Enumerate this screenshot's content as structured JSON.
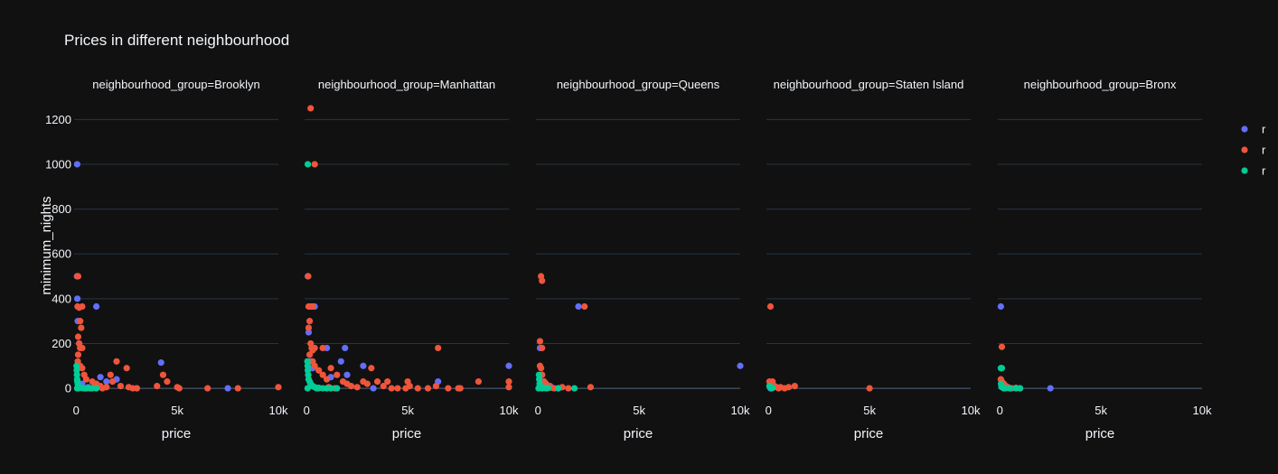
{
  "chart_data": {
    "type": "scatter",
    "title": "Prices in different neighbourhood",
    "xlabel": "price",
    "ylabel": "minimum_nights",
    "xlim": [
      -100,
      10000
    ],
    "ylim": [
      -40,
      1290
    ],
    "x_ticks": [
      {
        "value": 0,
        "label": "0"
      },
      {
        "value": 5000,
        "label": "5k"
      },
      {
        "value": 10000,
        "label": "10k"
      }
    ],
    "y_ticks": [
      {
        "value": 0,
        "label": "0"
      },
      {
        "value": 200,
        "label": "200"
      },
      {
        "value": 400,
        "label": "400"
      },
      {
        "value": 600,
        "label": "600"
      },
      {
        "value": 800,
        "label": "800"
      },
      {
        "value": 1000,
        "label": "1000"
      },
      {
        "value": 1200,
        "label": "1200"
      }
    ],
    "grid": true,
    "legend_position": "top-right",
    "legend": [
      {
        "label": "r",
        "color": "#636efa"
      },
      {
        "label": "r",
        "color": "#ef553b"
      },
      {
        "label": "r",
        "color": "#00cc96"
      }
    ],
    "facets": [
      {
        "title": "neighbourhood_group=Brooklyn",
        "series": [
          {
            "color": "#636efa",
            "points": [
              [
                50,
                1000
              ],
              [
                40,
                500
              ],
              [
                60,
                400
              ],
              [
                80,
                300
              ],
              [
                1000,
                365
              ],
              [
                150,
                200
              ],
              [
                100,
                100
              ],
              [
                1200,
                50
              ],
              [
                2000,
                40
              ],
              [
                3000,
                0
              ],
              [
                4200,
                115
              ],
              [
                7500,
                0
              ],
              [
                1500,
                30
              ],
              [
                300,
                20
              ],
              [
                600,
                5
              ]
            ]
          },
          {
            "color": "#ef553b",
            "points": [
              [
                60,
                500
              ],
              [
                100,
                500
              ],
              [
                70,
                365
              ],
              [
                150,
                360
              ],
              [
                300,
                365
              ],
              [
                200,
                300
              ],
              [
                250,
                270
              ],
              [
                100,
                230
              ],
              [
                150,
                200
              ],
              [
                200,
                180
              ],
              [
                300,
                180
              ],
              [
                100,
                150
              ],
              [
                80,
                120
              ],
              [
                200,
                100
              ],
              [
                300,
                90
              ],
              [
                400,
                60
              ],
              [
                500,
                40
              ],
              [
                800,
                30
              ],
              [
                1000,
                20
              ],
              [
                1200,
                10
              ],
              [
                1500,
                5
              ],
              [
                1700,
                60
              ],
              [
                1800,
                30
              ],
              [
                2000,
                120
              ],
              [
                2200,
                10
              ],
              [
                2500,
                90
              ],
              [
                2600,
                5
              ],
              [
                3000,
                0
              ],
              [
                4000,
                10
              ],
              [
                4300,
                60
              ],
              [
                4500,
                30
              ],
              [
                5000,
                5
              ],
              [
                5100,
                0
              ],
              [
                6500,
                0
              ],
              [
                8000,
                0
              ],
              [
                10000,
                5
              ],
              [
                700,
                0
              ],
              [
                900,
                5
              ],
              [
                1300,
                0
              ],
              [
                2800,
                0
              ]
            ]
          },
          {
            "color": "#00cc96",
            "points": [
              [
                20,
                100
              ],
              [
                30,
                80
              ],
              [
                40,
                60
              ],
              [
                50,
                40
              ],
              [
                60,
                30
              ],
              [
                80,
                20
              ],
              [
                100,
                10
              ],
              [
                150,
                5
              ],
              [
                200,
                2
              ],
              [
                300,
                1
              ],
              [
                400,
                0
              ],
              [
                500,
                0
              ],
              [
                600,
                1
              ],
              [
                700,
                0
              ],
              [
                800,
                0
              ],
              [
                1000,
                0
              ],
              [
                50,
                0
              ],
              [
                120,
                0
              ]
            ]
          }
        ]
      },
      {
        "title": "neighbourhood_group=Manhattan",
        "series": [
          {
            "color": "#636efa",
            "points": [
              [
                60,
                500
              ],
              [
                100,
                250
              ],
              [
                400,
                365
              ],
              [
                1000,
                180
              ],
              [
                1200,
                50
              ],
              [
                1700,
                120
              ],
              [
                1900,
                180
              ],
              [
                2000,
                60
              ],
              [
                2800,
                100
              ],
              [
                3300,
                0
              ],
              [
                6500,
                30
              ],
              [
                10000,
                100
              ],
              [
                200,
                120
              ],
              [
                300,
                90
              ]
            ]
          },
          {
            "color": "#ef553b",
            "points": [
              [
                200,
                1250
              ],
              [
                400,
                1000
              ],
              [
                80,
                500
              ],
              [
                100,
                365
              ],
              [
                200,
                365
              ],
              [
                300,
                365
              ],
              [
                150,
                300
              ],
              [
                100,
                270
              ],
              [
                200,
                200
              ],
              [
                250,
                180
              ],
              [
                300,
                170
              ],
              [
                400,
                180
              ],
              [
                800,
                180
              ],
              [
                150,
                150
              ],
              [
                300,
                120
              ],
              [
                400,
                100
              ],
              [
                600,
                80
              ],
              [
                800,
                60
              ],
              [
                1000,
                40
              ],
              [
                1200,
                90
              ],
              [
                1500,
                60
              ],
              [
                1800,
                30
              ],
              [
                2000,
                20
              ],
              [
                2200,
                10
              ],
              [
                2500,
                5
              ],
              [
                2800,
                30
              ],
              [
                3000,
                20
              ],
              [
                3200,
                90
              ],
              [
                3500,
                30
              ],
              [
                3800,
                10
              ],
              [
                4000,
                30
              ],
              [
                4200,
                0
              ],
              [
                5000,
                30
              ],
              [
                5100,
                10
              ],
              [
                6000,
                0
              ],
              [
                6400,
                10
              ],
              [
                6500,
                180
              ],
              [
                7000,
                0
              ],
              [
                7500,
                0
              ],
              [
                7600,
                0
              ],
              [
                8500,
                30
              ],
              [
                10000,
                30
              ],
              [
                10000,
                5
              ],
              [
                4500,
                0
              ],
              [
                4900,
                0
              ],
              [
                5500,
                0
              ],
              [
                600,
                0
              ],
              [
                1100,
                5
              ],
              [
                1400,
                0
              ]
            ]
          },
          {
            "color": "#00cc96",
            "points": [
              [
                60,
                1000
              ],
              [
                40,
                120
              ],
              [
                50,
                100
              ],
              [
                60,
                80
              ],
              [
                80,
                60
              ],
              [
                100,
                40
              ],
              [
                150,
                30
              ],
              [
                200,
                20
              ],
              [
                300,
                10
              ],
              [
                400,
                5
              ],
              [
                500,
                0
              ],
              [
                600,
                2
              ],
              [
                800,
                0
              ],
              [
                1000,
                0
              ],
              [
                1200,
                0
              ],
              [
                1500,
                0
              ],
              [
                50,
                0
              ]
            ]
          }
        ]
      },
      {
        "title": "neighbourhood_group=Queens",
        "series": [
          {
            "color": "#636efa",
            "points": [
              [
                100,
                180
              ],
              [
                2000,
                365
              ],
              [
                1000,
                0
              ],
              [
                10000,
                100
              ],
              [
                300,
                30
              ],
              [
                600,
                10
              ],
              [
                200,
                60
              ],
              [
                500,
                5
              ]
            ]
          },
          {
            "color": "#ef553b",
            "points": [
              [
                150,
                500
              ],
              [
                200,
                480
              ],
              [
                100,
                210
              ],
              [
                200,
                180
              ],
              [
                100,
                100
              ],
              [
                150,
                90
              ],
              [
                200,
                60
              ],
              [
                300,
                30
              ],
              [
                400,
                20
              ],
              [
                500,
                10
              ],
              [
                600,
                5
              ],
              [
                700,
                2
              ],
              [
                1000,
                0
              ],
              [
                1500,
                0
              ],
              [
                2300,
                365
              ],
              [
                2600,
                5
              ],
              [
                800,
                0
              ],
              [
                1200,
                5
              ]
            ]
          },
          {
            "color": "#00cc96",
            "points": [
              [
                50,
                60
              ],
              [
                60,
                40
              ],
              [
                80,
                20
              ],
              [
                100,
                10
              ],
              [
                150,
                5
              ],
              [
                200,
                0
              ],
              [
                300,
                2
              ],
              [
                400,
                0
              ],
              [
                500,
                1
              ],
              [
                1000,
                0
              ],
              [
                1800,
                0
              ],
              [
                30,
                0
              ]
            ]
          }
        ]
      },
      {
        "title": "neighbourhood_group=Staten Island",
        "series": [
          {
            "color": "#636efa",
            "points": [
              [
                100,
                0
              ]
            ]
          },
          {
            "color": "#ef553b",
            "points": [
              [
                100,
                365
              ],
              [
                200,
                30
              ],
              [
                100,
                20
              ],
              [
                300,
                10
              ],
              [
                400,
                5
              ],
              [
                500,
                0
              ],
              [
                600,
                5
              ],
              [
                800,
                0
              ],
              [
                1000,
                5
              ],
              [
                1300,
                10
              ],
              [
                5000,
                0
              ],
              [
                50,
                30
              ]
            ]
          },
          {
            "color": "#00cc96",
            "points": [
              [
                50,
                10
              ],
              [
                100,
                5
              ],
              [
                150,
                0
              ],
              [
                200,
                2
              ]
            ]
          }
        ]
      },
      {
        "title": "neighbourhood_group=Bronx",
        "series": [
          {
            "color": "#636efa",
            "points": [
              [
                50,
                365
              ],
              [
                2500,
                0
              ],
              [
                200,
                0
              ]
            ]
          },
          {
            "color": "#ef553b",
            "points": [
              [
                100,
                185
              ],
              [
                50,
                40
              ],
              [
                100,
                30
              ],
              [
                200,
                20
              ],
              [
                300,
                10
              ],
              [
                400,
                5
              ],
              [
                500,
                0
              ],
              [
                600,
                0
              ],
              [
                800,
                2
              ],
              [
                1000,
                0
              ]
            ]
          },
          {
            "color": "#00cc96",
            "points": [
              [
                100,
                90
              ],
              [
                50,
                90
              ],
              [
                60,
                20
              ],
              [
                80,
                10
              ],
              [
                100,
                5
              ],
              [
                200,
                0
              ],
              [
                300,
                1
              ],
              [
                500,
                0
              ],
              [
                800,
                0
              ],
              [
                1000,
                0
              ]
            ]
          }
        ]
      }
    ]
  }
}
